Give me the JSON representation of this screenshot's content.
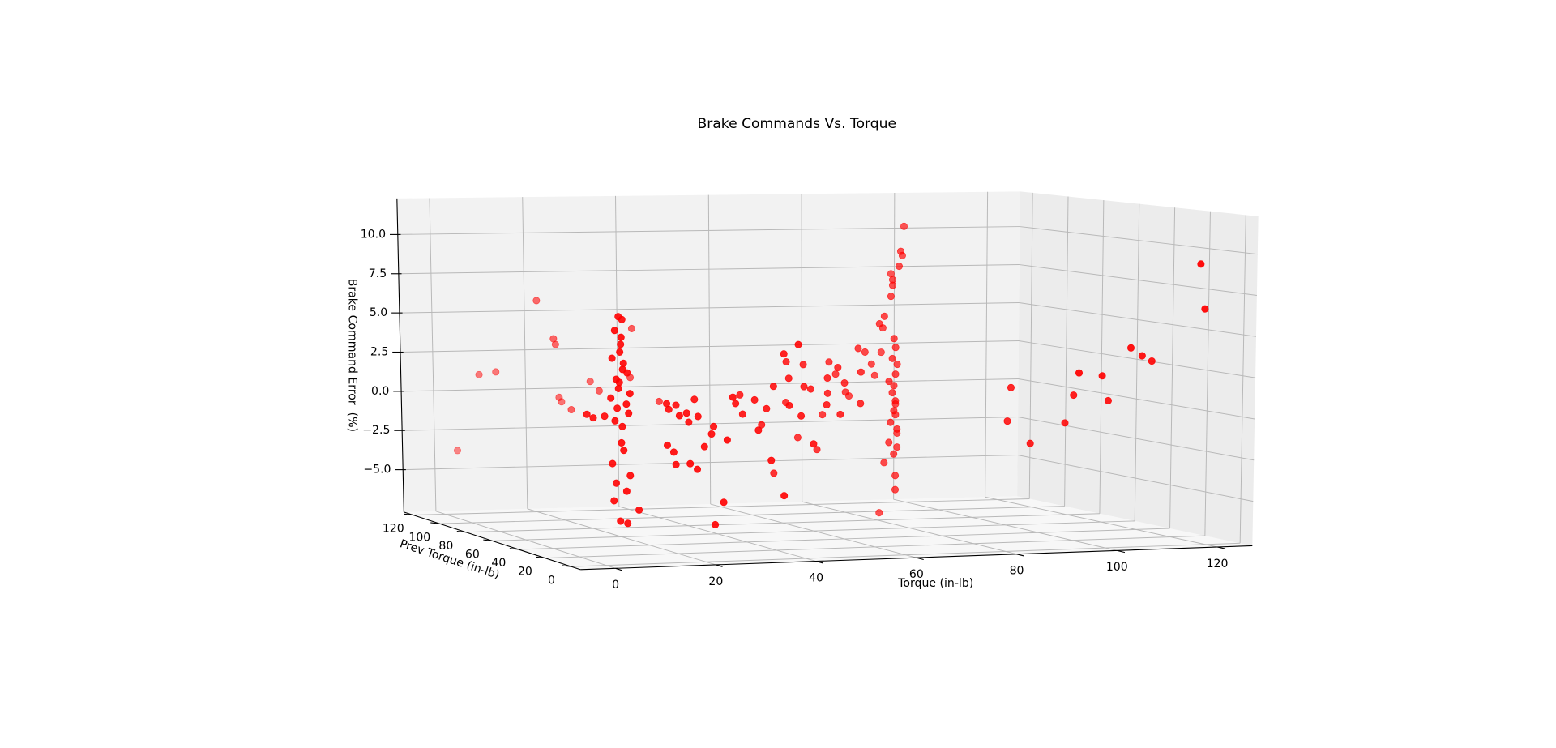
{
  "chart_data": {
    "type": "scatter3d",
    "title": "Brake Commands Vs. Torque",
    "x_label": "Torque (in-lb)",
    "y_label": "Prev Torque (in-lb)",
    "z_label": "Brake Command Error  (%)",
    "xlim": [
      -7,
      127
    ],
    "ylim": [
      -7,
      127
    ],
    "zlim": [
      -7.7,
      12.3
    ],
    "xticks": [
      0,
      20,
      40,
      60,
      80,
      100,
      120
    ],
    "yticks": [
      0,
      20,
      40,
      60,
      80,
      100,
      120
    ],
    "zticks": [
      {
        "value": -5,
        "label": "−5.0"
      },
      {
        "value": -2.5,
        "label": "−2.5"
      },
      {
        "value": 0,
        "label": "0.0"
      },
      {
        "value": 2.5,
        "label": "2.5"
      },
      {
        "value": 5,
        "label": "5.0"
      },
      {
        "value": 7.5,
        "label": "7.5"
      },
      {
        "value": 10,
        "label": "10.0"
      }
    ],
    "grid": true,
    "series": [
      {
        "color": "#ff0000",
        "x": [
          4,
          5,
          3,
          4,
          5,
          4,
          3,
          5,
          4,
          6,
          3,
          5,
          4,
          6,
          3,
          5,
          4,
          6,
          3,
          5,
          4,
          5,
          3,
          6,
          4,
          5,
          3,
          4,
          6,
          8,
          2,
          -1,
          0,
          0,
          2,
          5,
          10,
          12,
          13,
          15,
          16,
          20,
          22,
          25,
          26,
          28,
          18,
          15,
          16,
          17,
          18,
          19,
          20,
          21,
          22,
          14,
          15,
          16,
          18,
          20,
          22,
          24,
          25,
          26,
          28,
          30,
          32,
          34,
          35,
          36,
          38,
          40,
          42,
          44,
          45,
          46,
          48,
          50,
          52,
          54,
          55,
          56,
          58,
          60,
          62,
          64,
          25,
          38,
          23,
          45,
          50,
          40,
          35,
          48,
          52,
          55,
          44,
          58,
          60,
          62,
          65,
          66,
          70,
          72,
          68,
          74,
          76,
          40,
          42,
          76,
          77,
          75,
          78,
          76,
          74,
          77,
          76,
          75,
          78,
          76,
          77,
          75,
          76,
          78,
          74,
          77,
          76,
          75,
          77,
          76,
          75,
          82,
          80,
          81,
          79,
          77,
          78,
          76,
          80,
          74,
          75,
          72,
          120,
          122,
          108,
          112,
          115,
          97,
          103,
          107,
          100,
          100,
          93,
          90,
          90
        ],
        "y": [
          5,
          6,
          4,
          3,
          7,
          4,
          6,
          5,
          2,
          6,
          3,
          8,
          5,
          4,
          7,
          3,
          6,
          5,
          4,
          6,
          3,
          5,
          6,
          4,
          7,
          3,
          5,
          4,
          6,
          5,
          8,
          10,
          9,
          110,
          100,
          98,
          85,
          80,
          82,
          78,
          90,
          75,
          88,
          70,
          72,
          60,
          95,
          10,
          12,
          8,
          14,
          10,
          12,
          9,
          15,
          6,
          5,
          7,
          4,
          6,
          8,
          10,
          12,
          6,
          9,
          14,
          16,
          12,
          18,
          10,
          20,
          22,
          18,
          25,
          20,
          15,
          28,
          30,
          26,
          32,
          35,
          30,
          38,
          40,
          36,
          42,
          5,
          8,
          4,
          30,
          35,
          30,
          28,
          40,
          45,
          42,
          35,
          48,
          50,
          52,
          55,
          50,
          58,
          60,
          62,
          64,
          66,
          15,
          12,
          58,
          60,
          56,
          62,
          57,
          55,
          61,
          59,
          54,
          63,
          58,
          60,
          57,
          56,
          62,
          55,
          59,
          58,
          61,
          60,
          57,
          64,
          70,
          66,
          68,
          64,
          62,
          65,
          60,
          72,
          58,
          62,
          55,
          5,
          8,
          10,
          15,
          18,
          8,
          12,
          20,
          20,
          25,
          25,
          30,
          28
        ],
        "z": [
          7,
          6.8,
          6.2,
          5.8,
          5.3,
          4.9,
          4.5,
          4.2,
          3.9,
          3.6,
          3.3,
          3,
          2.7,
          2.4,
          2.1,
          1.8,
          1.5,
          1.2,
          0.8,
          0.4,
          -0.5,
          -1,
          -1.8,
          -2.5,
          -3,
          -3.4,
          -4,
          -5.2,
          -5.4,
          -4.6,
          1,
          1.1,
          0.9,
          -3.4,
          1.6,
          1.8,
          6.5,
          4.2,
          3.8,
          -0.2,
          0.3,
          1,
          1.3,
          1.9,
          4.9,
          0.6,
          -0.1,
          1.6,
          1.2,
          0.9,
          1.4,
          1,
          0.4,
          0.8,
          1.7,
          -0.8,
          -1.2,
          -2,
          -1.9,
          -2.3,
          -1,
          -0.3,
          0.1,
          -0.6,
          1.9,
          1.4,
          0.7,
          -0.2,
          1.5,
          -2,
          0.9,
          2.2,
          1.1,
          2.6,
          0.4,
          -1.2,
          2,
          1.8,
          0.9,
          2.4,
          1.4,
          0.2,
          2.9,
          1.9,
          0.7,
          2.5,
          -4.3,
          -4.1,
          -5.6,
          3.5,
          3.2,
          -0.3,
          1.6,
          0.8,
          -1.5,
          -2.2,
          -3.4,
          -0.2,
          3,
          2.2,
          1,
          3.8,
          3.4,
          2.6,
          0.6,
          1.8,
          3.2,
          4.3,
          4.9,
          4.2,
          3.6,
          3,
          2.5,
          2,
          1.6,
          1.2,
          0.8,
          0.4,
          0,
          -0.3,
          -0.6,
          -1,
          -1.4,
          -1.8,
          -2.2,
          -2.6,
          -3,
          -3.6,
          -4.4,
          -5.2,
          -6.8,
          11,
          9.5,
          9.2,
          8.6,
          7.8,
          7.4,
          6.8,
          8,
          5.6,
          4.8,
          5.2,
          9.3,
          6.5,
          4.2,
          3.6,
          3.2,
          2.8,
          2.5,
          0.8,
          1.2,
          -0.6,
          -1.8,
          -0.5,
          1.6
        ]
      }
    ]
  }
}
